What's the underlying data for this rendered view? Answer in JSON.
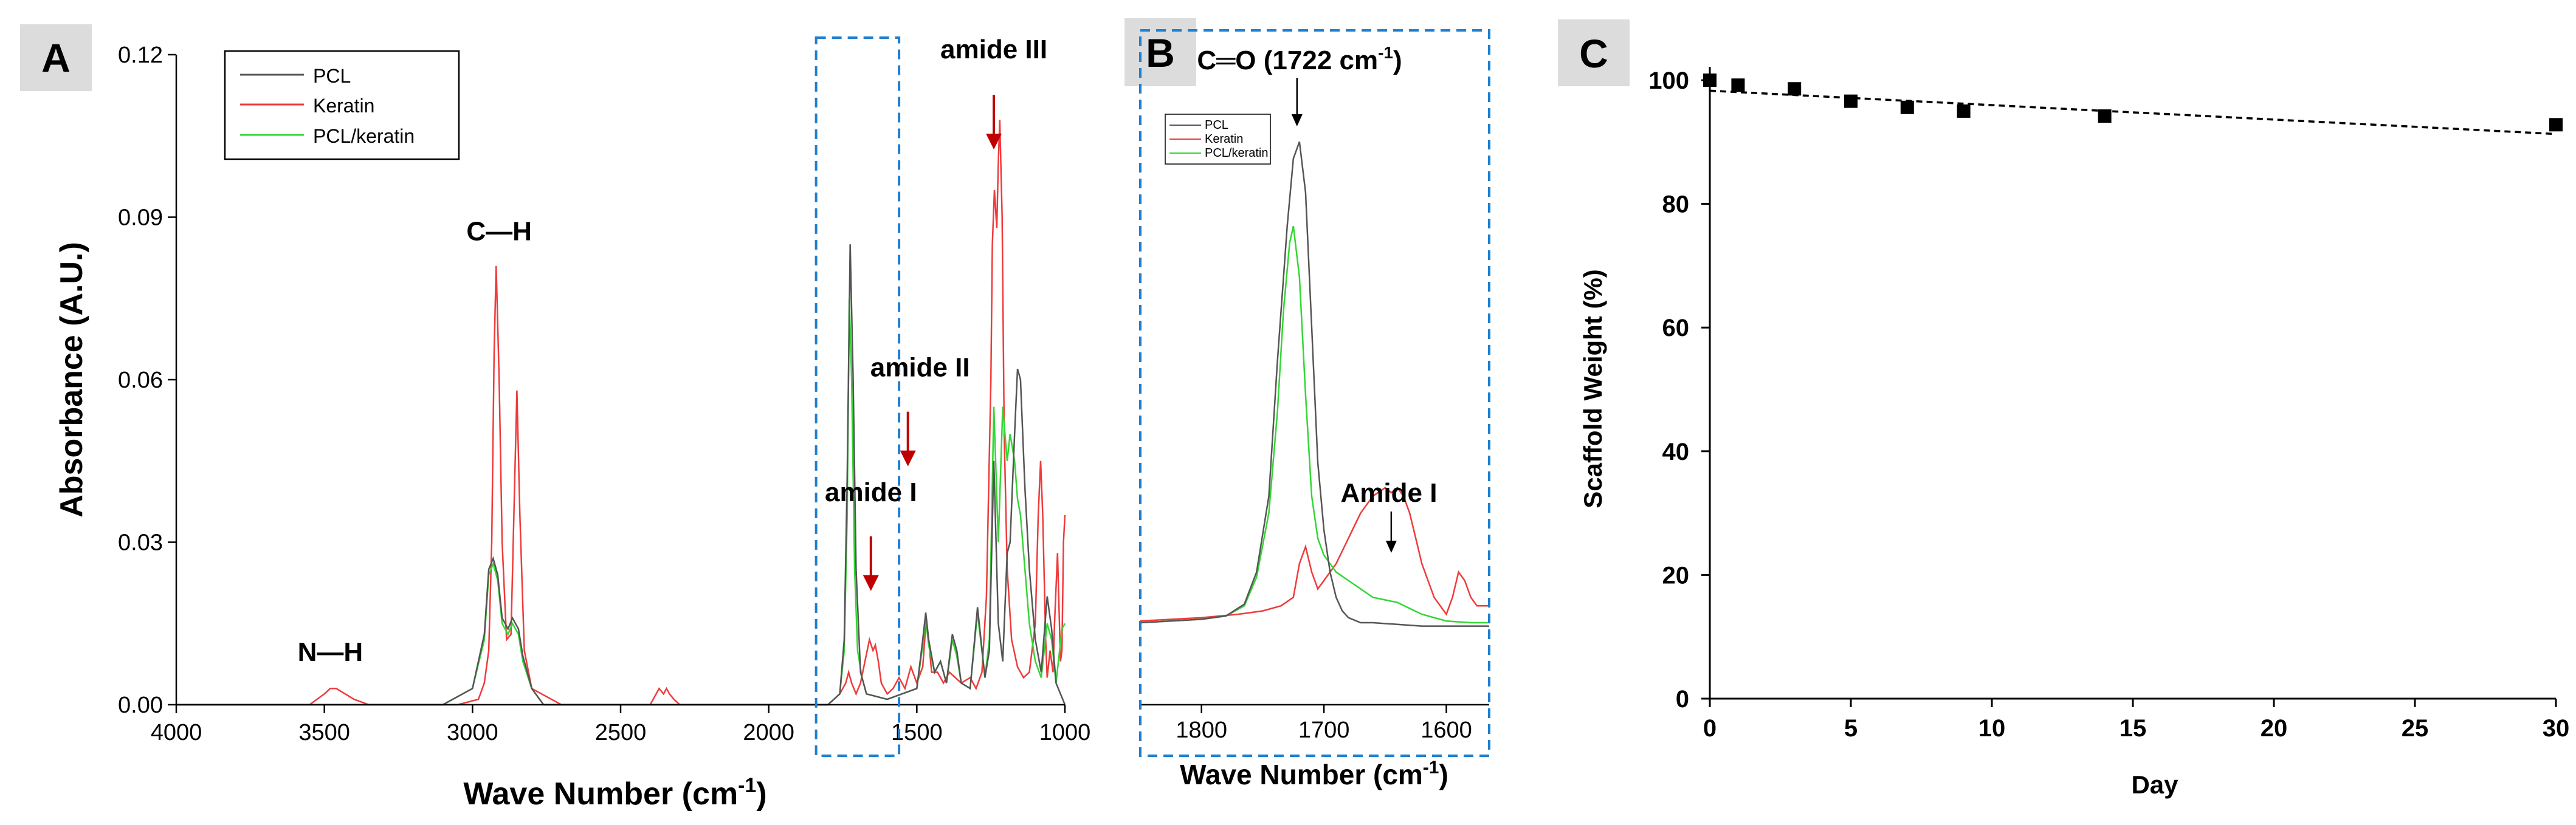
{
  "colors": {
    "pcl": "#555555",
    "keratin": "#ef3b3b",
    "blend": "#34d634",
    "selection_box": "#1f7fd1",
    "annotation_arrow_red": "#c00000",
    "panel_letter_bg": "#dcdcdc"
  },
  "chart_data": [
    {
      "panel": "A",
      "type": "line",
      "title": "",
      "xlabel": "Wave Number (cm",
      "xlabel_sup": "-1",
      "xlabel_close": ")",
      "ylabel": "Absorbance (A.U.)",
      "xlim": [
        4000,
        1000
      ],
      "ylim": [
        0,
        0.12
      ],
      "x_ticks": [
        4000,
        3500,
        3000,
        2500,
        2000,
        1500,
        1000
      ],
      "y_ticks": [
        "0.00",
        "0.03",
        "0.06",
        "0.09",
        "0.12"
      ],
      "legend": [
        "PCL",
        "Keratin",
        "PCL/keratin"
      ],
      "legend_position": "top-left",
      "series": [
        {
          "name": "PCL",
          "color_key": "pcl",
          "x": [
            4000,
            3100,
            3000,
            2960,
            2945,
            2930,
            2915,
            2900,
            2880,
            2865,
            2845,
            2830,
            2800,
            2760,
            1800,
            1760,
            1745,
            1735,
            1725,
            1715,
            1705,
            1690,
            1670,
            1600,
            1500,
            1480,
            1470,
            1460,
            1440,
            1420,
            1400,
            1380,
            1365,
            1350,
            1320,
            1295,
            1270,
            1255,
            1240,
            1225,
            1210,
            1195,
            1185,
            1170,
            1160,
            1150,
            1135,
            1120,
            1100,
            1080,
            1060,
            1045,
            1030,
            1000
          ],
          "y": [
            0.0,
            0.0,
            0.003,
            0.013,
            0.025,
            0.027,
            0.024,
            0.016,
            0.014,
            0.016,
            0.014,
            0.009,
            0.003,
            0.0,
            0.0,
            0.002,
            0.012,
            0.042,
            0.085,
            0.06,
            0.025,
            0.006,
            0.002,
            0.001,
            0.003,
            0.012,
            0.017,
            0.012,
            0.006,
            0.008,
            0.004,
            0.013,
            0.01,
            0.004,
            0.003,
            0.018,
            0.005,
            0.01,
            0.045,
            0.015,
            0.008,
            0.028,
            0.03,
            0.05,
            0.062,
            0.06,
            0.04,
            0.025,
            0.012,
            0.006,
            0.02,
            0.014,
            0.004,
            0.0
          ]
        },
        {
          "name": "Keratin",
          "color_key": "keratin",
          "x": [
            4000,
            3700,
            3550,
            3500,
            3480,
            3460,
            3430,
            3400,
            3350,
            3050,
            2980,
            2960,
            2945,
            2935,
            2927,
            2920,
            2910,
            2900,
            2885,
            2870,
            2858,
            2850,
            2840,
            2825,
            2800,
            2700,
            2400,
            2370,
            2355,
            2345,
            2335,
            2320,
            2300,
            1800,
            1760,
            1740,
            1730,
            1720,
            1705,
            1690,
            1675,
            1660,
            1648,
            1640,
            1630,
            1620,
            1600,
            1580,
            1560,
            1540,
            1520,
            1500,
            1480,
            1468,
            1460,
            1450,
            1430,
            1410,
            1390,
            1370,
            1350,
            1320,
            1300,
            1280,
            1265,
            1250,
            1245,
            1238,
            1230,
            1225,
            1220,
            1212,
            1205,
            1195,
            1180,
            1160,
            1140,
            1120,
            1100,
            1090,
            1082,
            1075,
            1065,
            1060,
            1050,
            1040,
            1035,
            1025,
            1015,
            1010,
            1005,
            1000
          ],
          "y": [
            0.0,
            0.0,
            0.0,
            0.002,
            0.003,
            0.003,
            0.002,
            0.001,
            0.0,
            0.0,
            0.001,
            0.004,
            0.01,
            0.03,
            0.065,
            0.081,
            0.06,
            0.03,
            0.012,
            0.013,
            0.04,
            0.058,
            0.035,
            0.01,
            0.003,
            0.0,
            0.0,
            0.003,
            0.002,
            0.003,
            0.002,
            0.001,
            0.0,
            0.0,
            0.002,
            0.004,
            0.006,
            0.004,
            0.002,
            0.004,
            0.008,
            0.012,
            0.01,
            0.011,
            0.008,
            0.004,
            0.002,
            0.003,
            0.005,
            0.003,
            0.007,
            0.004,
            0.007,
            0.016,
            0.012,
            0.006,
            0.006,
            0.004,
            0.006,
            0.005,
            0.004,
            0.005,
            0.003,
            0.006,
            0.02,
            0.06,
            0.085,
            0.095,
            0.088,
            0.1,
            0.108,
            0.09,
            0.05,
            0.025,
            0.012,
            0.007,
            0.005,
            0.006,
            0.015,
            0.035,
            0.045,
            0.035,
            0.012,
            0.005,
            0.01,
            0.006,
            0.015,
            0.028,
            0.008,
            0.01,
            0.03,
            0.035
          ]
        },
        {
          "name": "PCL/keratin",
          "color_key": "blend",
          "x": [
            4000,
            3100,
            3000,
            2960,
            2945,
            2930,
            2915,
            2900,
            2880,
            2865,
            2845,
            2830,
            2800,
            2760,
            1800,
            1760,
            1745,
            1735,
            1728,
            1720,
            1710,
            1700,
            1685,
            1670,
            1600,
            1500,
            1480,
            1470,
            1460,
            1440,
            1420,
            1400,
            1380,
            1365,
            1350,
            1320,
            1295,
            1270,
            1255,
            1240,
            1225,
            1210,
            1195,
            1185,
            1170,
            1160,
            1150,
            1135,
            1120,
            1100,
            1080,
            1060,
            1045,
            1030,
            1010,
            1000
          ],
          "y": [
            0.0,
            0.0,
            0.003,
            0.012,
            0.024,
            0.026,
            0.023,
            0.015,
            0.013,
            0.015,
            0.013,
            0.008,
            0.003,
            0.0,
            0.0,
            0.002,
            0.01,
            0.035,
            0.075,
            0.06,
            0.025,
            0.01,
            0.005,
            0.002,
            0.001,
            0.003,
            0.011,
            0.016,
            0.011,
            0.006,
            0.008,
            0.004,
            0.012,
            0.009,
            0.004,
            0.003,
            0.017,
            0.005,
            0.012,
            0.055,
            0.03,
            0.055,
            0.045,
            0.05,
            0.045,
            0.038,
            0.035,
            0.025,
            0.015,
            0.008,
            0.005,
            0.015,
            0.012,
            0.004,
            0.014,
            0.015
          ]
        }
      ],
      "annotations": [
        {
          "text": "N—H",
          "wavenumber": 3480,
          "absorbance": 0.0065
        },
        {
          "text": "C—H",
          "wavenumber": 2910,
          "absorbance": 0.0835
        },
        {
          "text": "amide I",
          "wavenumber": 1655,
          "absorbance": 0.021,
          "arrow": true
        },
        {
          "text": "amide II",
          "wavenumber": 1530,
          "absorbance": 0.044,
          "arrow": true
        },
        {
          "text": "amide III",
          "wavenumber": 1240,
          "absorbance": 0.1025,
          "arrow": true
        }
      ],
      "highlight_range": [
        1840,
        1560
      ]
    },
    {
      "panel": "B",
      "type": "line",
      "title": "",
      "xlabel": "Wave Number (cm",
      "xlabel_sup": "-1",
      "xlabel_close": ")",
      "xlim": [
        1850,
        1565
      ],
      "x_ticks": [
        1800,
        1700,
        1600
      ],
      "legend": [
        "PCL",
        "Keratin",
        "PCL/keratin"
      ],
      "legend_position": "top-left",
      "series": [
        {
          "name": "PCL",
          "color_key": "pcl",
          "x": [
            1850,
            1800,
            1780,
            1765,
            1755,
            1745,
            1738,
            1730,
            1725,
            1720,
            1715,
            1710,
            1705,
            1700,
            1695,
            1690,
            1685,
            1680,
            1670,
            1660,
            1640,
            1620,
            1600,
            1580,
            1565
          ],
          "y": [
            0.045,
            0.047,
            0.049,
            0.056,
            0.075,
            0.12,
            0.2,
            0.28,
            0.32,
            0.33,
            0.3,
            0.22,
            0.14,
            0.1,
            0.075,
            0.06,
            0.052,
            0.048,
            0.045,
            0.045,
            0.044,
            0.043,
            0.043,
            0.043,
            0.043
          ]
        },
        {
          "name": "Keratin",
          "color_key": "keratin",
          "x": [
            1850,
            1800,
            1770,
            1750,
            1735,
            1725,
            1720,
            1715,
            1710,
            1705,
            1700,
            1690,
            1680,
            1670,
            1660,
            1650,
            1645,
            1640,
            1635,
            1630,
            1625,
            1620,
            1610,
            1600,
            1595,
            1590,
            1585,
            1580,
            1575,
            1565
          ],
          "y": [
            0.046,
            0.048,
            0.05,
            0.052,
            0.055,
            0.06,
            0.08,
            0.09,
            0.075,
            0.065,
            0.07,
            0.08,
            0.095,
            0.11,
            0.12,
            0.125,
            0.122,
            0.125,
            0.12,
            0.11,
            0.095,
            0.08,
            0.06,
            0.05,
            0.06,
            0.075,
            0.07,
            0.06,
            0.055,
            0.055
          ]
        },
        {
          "name": "PCL/keratin",
          "color_key": "blend",
          "x": [
            1850,
            1800,
            1780,
            1765,
            1755,
            1745,
            1738,
            1733,
            1728,
            1725,
            1720,
            1715,
            1710,
            1705,
            1700,
            1690,
            1680,
            1670,
            1660,
            1640,
            1620,
            1600,
            1580,
            1565
          ],
          "y": [
            0.045,
            0.047,
            0.049,
            0.055,
            0.072,
            0.11,
            0.17,
            0.23,
            0.27,
            0.28,
            0.25,
            0.18,
            0.12,
            0.095,
            0.085,
            0.075,
            0.07,
            0.065,
            0.06,
            0.057,
            0.05,
            0.046,
            0.045,
            0.045
          ]
        }
      ],
      "annotations": [
        {
          "text_main": "C═O",
          "text_paren": "(1722 cm",
          "text_sup": "-1",
          "text_close": ")",
          "wavenumber": 1722,
          "arrow": true
        },
        {
          "text": "Amide I",
          "wavenumber": 1645,
          "arrow": true
        }
      ]
    },
    {
      "panel": "C",
      "type": "scatter",
      "title": "",
      "xlabel": "Day",
      "ylabel": "Scaffold Weight (%)",
      "xlim": [
        0,
        30
      ],
      "ylim": [
        0,
        100
      ],
      "x_ticks": [
        "0",
        "5",
        "10",
        "15",
        "20",
        "25",
        "30"
      ],
      "y_ticks": [
        "0",
        "20",
        "40",
        "60",
        "80",
        "100"
      ],
      "points": {
        "x": [
          0,
          1,
          3,
          5,
          7,
          9,
          14,
          30
        ],
        "y": [
          100,
          99.2,
          98.6,
          96.6,
          95.6,
          95.0,
          94.2,
          92.8
        ]
      },
      "trendline": {
        "style": "dashed",
        "x": [
          0,
          30
        ],
        "y": [
          98.3,
          91.3
        ]
      }
    }
  ]
}
